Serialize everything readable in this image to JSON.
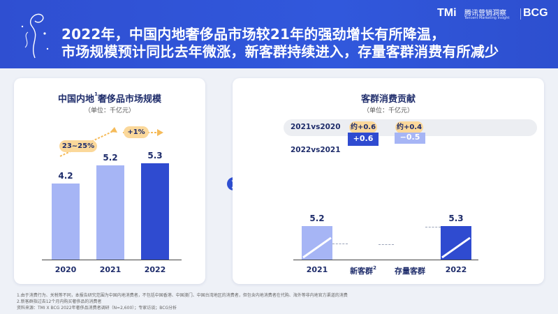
{
  "header": {
    "title_line1": "2022年，中国内地奢侈品市场较21年的强劲增长有所降温，",
    "title_line2": "市场规模预计同比去年微涨，新客群持续进入，存量客群消费有所减少",
    "logo_tmi": "TMi",
    "logo_tmi_cn": "腾讯营销洞察",
    "logo_tmi_en": "Tencent Marketing Insight",
    "logo_bcg": "BCG",
    "colors": {
      "header_bg": "#2f4fd1",
      "accent": "#fbd89a"
    }
  },
  "left_panel": {
    "title": "中国内地",
    "title_sup": "1",
    "title_rest": "奢侈品市场规模",
    "unit": "（单位：千亿元）",
    "growth_tags": [
      "23~25%",
      "+1%"
    ]
  },
  "right_panel": {
    "title": "客群消费贡献",
    "unit": "（单位：千亿元）",
    "row1_label": "2021vs2020",
    "row1_tags": [
      "约+0.6",
      "约+0.4"
    ],
    "row2_label": "2022vs2021"
  },
  "footnotes": {
    "line1": "1.由于消费行为、关税等不同，本报告研究范围为中国内地消费者，不包括中国香港、中国澳门、中国台湾地区的消费者，但包含内地消费者在代购、海外等非内地官方渠道的消费",
    "line2": "2.新客群指过去12个月内购买奢侈品的消费者",
    "line3": "资料来源：TMI X BCG 2022年奢侈品消费者调研（N=2,600）；专家访谈；BCG分析"
  },
  "chart_data": [
    {
      "type": "bar",
      "title": "中国内地奢侈品市场规模",
      "ylabel": "千亿元",
      "categories": [
        "2020",
        "2021",
        "2022"
      ],
      "values": [
        4.2,
        5.2,
        5.3
      ],
      "ylim": [
        0,
        5.3
      ],
      "colors": [
        "#a6b5f5",
        "#a6b5f5",
        "#2f4bd0"
      ],
      "annotations": [
        "23~25%",
        "+1%"
      ]
    },
    {
      "type": "bar",
      "title": "客群消费贡献",
      "ylabel": "千亿元",
      "categories": [
        "2021",
        "新客群",
        "存量客群",
        "2022"
      ],
      "sup": [
        "",
        "2",
        "",
        ""
      ],
      "values": [
        5.2,
        0.6,
        -0.5,
        5.3
      ],
      "value_labels": [
        "5.2",
        "+0.6",
        "−0.5",
        "5.3"
      ],
      "measure": [
        "total",
        "increase",
        "decrease",
        "total"
      ],
      "ylim": [
        0,
        5.8
      ],
      "colors": [
        "#a6b5f5",
        "#2f4bd0",
        "#a6b5f5",
        "#2f4bd0"
      ]
    }
  ]
}
